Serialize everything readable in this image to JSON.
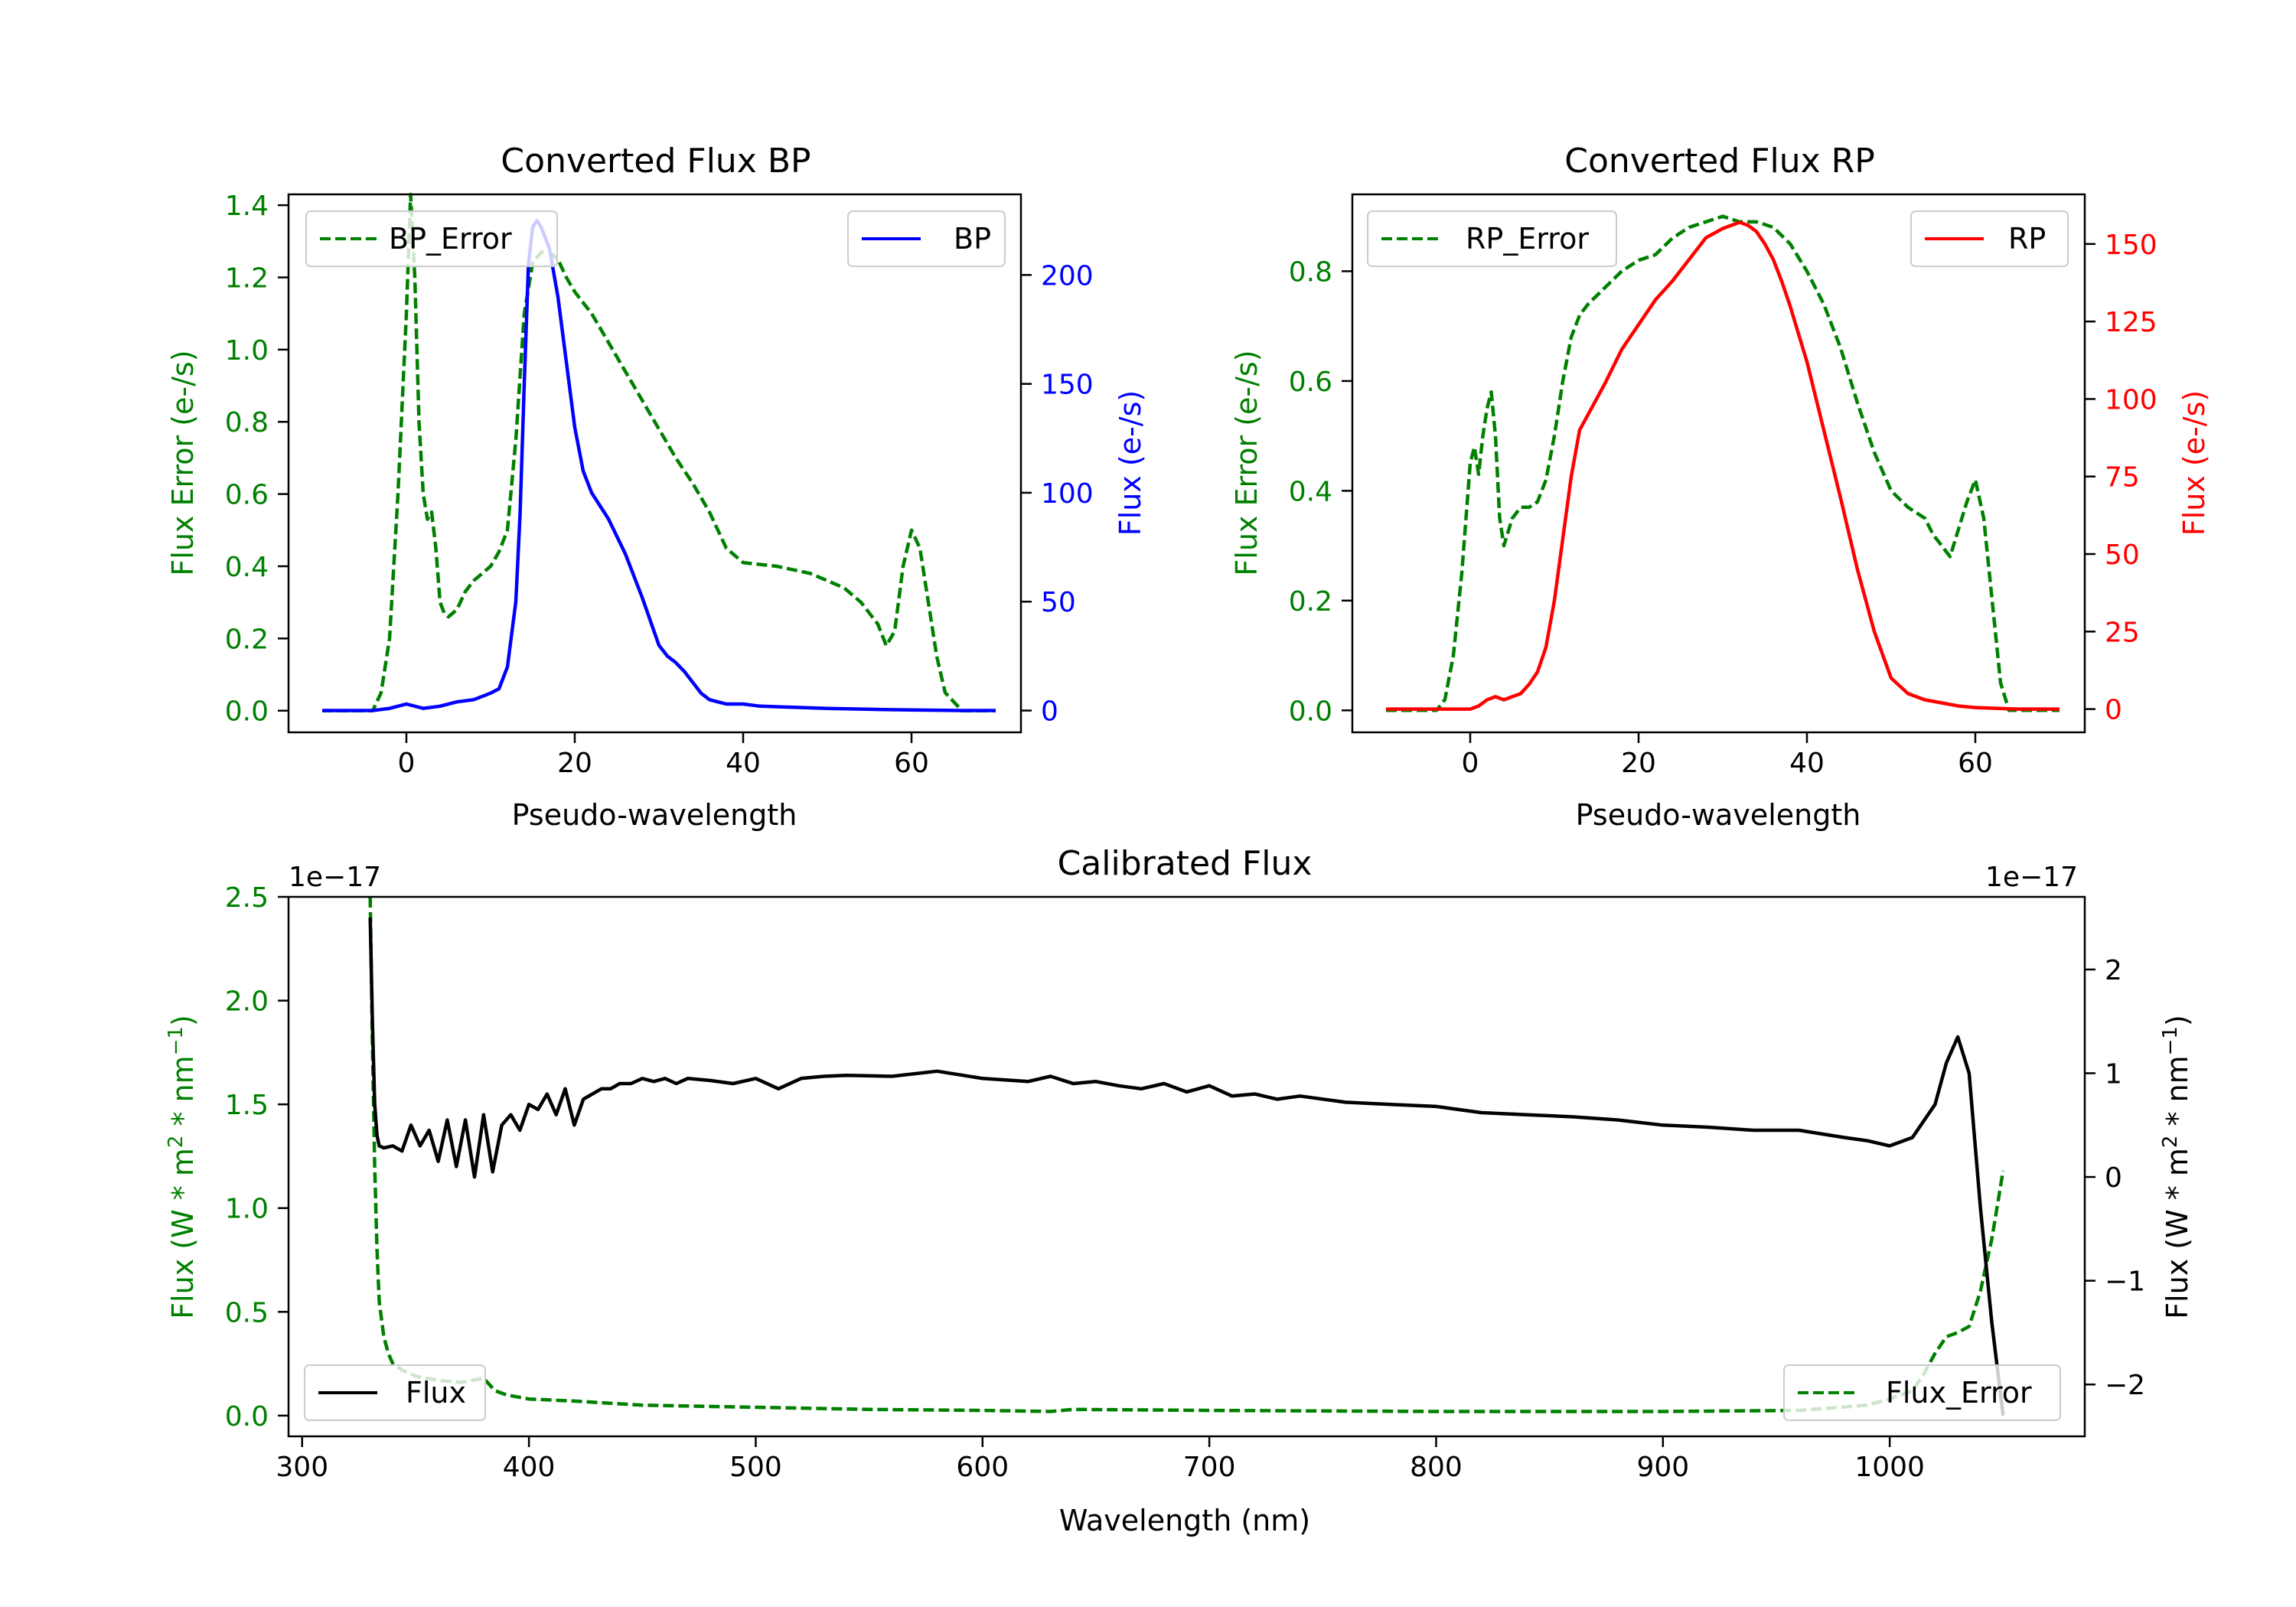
{
  "colors": {
    "green": "#008000",
    "blue": "#0000ff",
    "red": "#ff0000",
    "black": "#000000"
  },
  "chart_data": [
    {
      "id": "bp",
      "type": "line",
      "title": "Converted Flux BP",
      "xlabel": "Pseudo-wavelength",
      "ylabel_left": "Flux Error (e-/s)",
      "ylabel_right": "Flux (e-/s)",
      "xlim": [
        -14,
        73
      ],
      "ylim_left": [
        -0.06,
        1.43
      ],
      "ylim_right": [
        -10,
        237
      ],
      "xticks": [
        0,
        20,
        40,
        60
      ],
      "yticks_left": [
        "0.0",
        "0.2",
        "0.4",
        "0.6",
        "0.8",
        "1.0",
        "1.2",
        "1.4"
      ],
      "yticks_right": [
        "0",
        "50",
        "100",
        "150",
        "200"
      ],
      "legend_left": "BP_Error",
      "legend_right": "BP",
      "series": [
        {
          "name": "BP_Error",
          "axis": "left",
          "color": "green",
          "dash": true,
          "x": [
            -10,
            -4,
            -3,
            -2,
            -1,
            0,
            0.5,
            1,
            1.5,
            2,
            2.5,
            3,
            3.5,
            4,
            4.5,
            5,
            6,
            7,
            8,
            9,
            10,
            11,
            12,
            13,
            14,
            15,
            16,
            17,
            18,
            19,
            20,
            22,
            24,
            26,
            28,
            30,
            32,
            34,
            36,
            38,
            40,
            44,
            48,
            52,
            54,
            56,
            57,
            58,
            59,
            60,
            61,
            62,
            63,
            64,
            66,
            70
          ],
          "y": [
            0,
            0,
            0.05,
            0.2,
            0.6,
            1.1,
            1.43,
            1.2,
            0.8,
            0.6,
            0.53,
            0.55,
            0.45,
            0.3,
            0.27,
            0.26,
            0.28,
            0.33,
            0.36,
            0.38,
            0.4,
            0.44,
            0.5,
            0.75,
            1.1,
            1.24,
            1.27,
            1.27,
            1.25,
            1.2,
            1.16,
            1.1,
            1.02,
            0.94,
            0.86,
            0.78,
            0.7,
            0.63,
            0.55,
            0.45,
            0.41,
            0.4,
            0.38,
            0.34,
            0.3,
            0.24,
            0.18,
            0.22,
            0.4,
            0.5,
            0.45,
            0.3,
            0.15,
            0.05,
            0,
            0
          ]
        },
        {
          "name": "BP",
          "axis": "right",
          "color": "blue",
          "dash": false,
          "x": [
            -10,
            -4,
            -2,
            0,
            2,
            4,
            6,
            8,
            10,
            11,
            12,
            13,
            13.5,
            14,
            14.5,
            15,
            15.5,
            16,
            17,
            18,
            19,
            20,
            21,
            22,
            24,
            26,
            28,
            30,
            31,
            32,
            33,
            34,
            35,
            36,
            37,
            38,
            40,
            42,
            46,
            50,
            56,
            60,
            66,
            70
          ],
          "y": [
            0,
            0,
            1,
            3,
            1,
            2,
            4,
            5,
            8,
            10,
            20,
            50,
            90,
            150,
            205,
            222,
            225,
            222,
            212,
            190,
            160,
            130,
            110,
            100,
            88,
            72,
            52,
            30,
            25,
            22,
            18,
            13,
            8,
            5,
            4,
            3,
            3,
            2,
            1.5,
            1,
            0.5,
            0.3,
            0,
            0
          ]
        }
      ]
    },
    {
      "id": "rp",
      "type": "line",
      "title": "Converted Flux RP",
      "xlabel": "Pseudo-wavelength",
      "ylabel_left": "Flux Error (e-/s)",
      "ylabel_right": "Flux (e-/s)",
      "xlim": [
        -14,
        73
      ],
      "ylim_left": [
        -0.04,
        0.94
      ],
      "ylim_right": [
        -7.5,
        166
      ],
      "xticks": [
        0,
        20,
        40,
        60
      ],
      "yticks_left": [
        "0.0",
        "0.2",
        "0.4",
        "0.6",
        "0.8"
      ],
      "yticks_right": [
        "0",
        "25",
        "50",
        "75",
        "100",
        "125",
        "150"
      ],
      "legend_left": "RP_Error",
      "legend_right": "RP",
      "series": [
        {
          "name": "RP_Error",
          "axis": "left",
          "color": "green",
          "dash": true,
          "x": [
            -10,
            -4,
            -3,
            -2,
            -1,
            0,
            0.5,
            1,
            1.5,
            2,
            2.5,
            3,
            3.5,
            4,
            5,
            6,
            7,
            8,
            9,
            10,
            11,
            12,
            13,
            14,
            16,
            18,
            20,
            22,
            24,
            26,
            28,
            30,
            32,
            34,
            36,
            38,
            40,
            42,
            44,
            46,
            48,
            50,
            52,
            54,
            55,
            56,
            57,
            58,
            59,
            60,
            61,
            62,
            63,
            64,
            66,
            70
          ],
          "y": [
            0,
            0,
            0.02,
            0.1,
            0.25,
            0.45,
            0.48,
            0.43,
            0.5,
            0.55,
            0.58,
            0.5,
            0.35,
            0.3,
            0.35,
            0.37,
            0.37,
            0.38,
            0.42,
            0.5,
            0.6,
            0.68,
            0.72,
            0.74,
            0.77,
            0.8,
            0.82,
            0.83,
            0.86,
            0.88,
            0.89,
            0.9,
            0.89,
            0.89,
            0.88,
            0.85,
            0.8,
            0.74,
            0.66,
            0.56,
            0.47,
            0.4,
            0.37,
            0.35,
            0.32,
            0.3,
            0.28,
            0.33,
            0.38,
            0.42,
            0.35,
            0.2,
            0.05,
            0,
            0,
            0
          ]
        },
        {
          "name": "RP",
          "axis": "right",
          "color": "red",
          "dash": false,
          "x": [
            -10,
            -4,
            -2,
            0,
            1,
            2,
            3,
            4,
            5,
            6,
            7,
            8,
            9,
            10,
            11,
            12,
            13,
            14,
            16,
            18,
            20,
            22,
            24,
            26,
            28,
            30,
            32,
            33,
            34,
            35,
            36,
            37,
            38,
            40,
            42,
            44,
            46,
            48,
            50,
            52,
            54,
            56,
            58,
            60,
            65,
            70
          ],
          "y": [
            0,
            0,
            0,
            0,
            1,
            3,
            4,
            3,
            4,
            5,
            8,
            12,
            20,
            35,
            55,
            75,
            90,
            95,
            105,
            116,
            124,
            132,
            138,
            145,
            152,
            155,
            157,
            156,
            154,
            150,
            145,
            138,
            130,
            112,
            90,
            68,
            45,
            25,
            10,
            5,
            3,
            2,
            1,
            0.5,
            0,
            0
          ]
        }
      ]
    },
    {
      "id": "cal",
      "type": "line",
      "title": "Calibrated Flux",
      "xlabel": "Wavelength (nm)",
      "ylabel_left": "Flux (W * m",
      "ylabel_right": "Flux (W * m",
      "ylabel_mid": " * nm",
      "ylabel_end": ")",
      "ylabel_sup1": "2",
      "ylabel_sup2": "−1",
      "offset_left": "1e−17",
      "offset_right": "1e−17",
      "xlim": [
        294,
        1086
      ],
      "ylim_left": [
        -0.1,
        2.5
      ],
      "ylim_right": [
        -2.5,
        2.7
      ],
      "xticks": [
        300,
        400,
        500,
        600,
        700,
        800,
        900,
        1000
      ],
      "yticks_left": [
        "0.0",
        "0.5",
        "1.0",
        "1.5",
        "2.0",
        "2.5"
      ],
      "yticks_right": [
        "−2",
        "−1",
        "0",
        "1",
        "2"
      ],
      "legend_left": "Flux",
      "legend_right": "Flux_Error",
      "series": [
        {
          "name": "Flux_Error",
          "axis": "left",
          "color": "green",
          "dash": true,
          "x": [
            330,
            331,
            332,
            333,
            334,
            336,
            338,
            340,
            344,
            350,
            360,
            370,
            380,
            385,
            390,
            400,
            420,
            450,
            500,
            550,
            600,
            630,
            640,
            700,
            800,
            900,
            960,
            990,
            1000,
            1010,
            1015,
            1020,
            1025,
            1030,
            1035,
            1040,
            1045,
            1050
          ],
          "y": [
            2.5,
            1.8,
            1.2,
            0.8,
            0.55,
            0.38,
            0.3,
            0.25,
            0.22,
            0.19,
            0.17,
            0.16,
            0.18,
            0.12,
            0.1,
            0.08,
            0.07,
            0.05,
            0.04,
            0.03,
            0.025,
            0.02,
            0.03,
            0.025,
            0.02,
            0.02,
            0.025,
            0.05,
            0.08,
            0.12,
            0.2,
            0.3,
            0.38,
            0.4,
            0.43,
            0.6,
            0.85,
            1.18
          ]
        },
        {
          "name": "Flux",
          "axis": "right",
          "color": "black",
          "dash": false,
          "x": [
            330,
            331,
            332,
            333,
            334,
            336,
            340,
            344,
            348,
            352,
            356,
            360,
            364,
            368,
            372,
            376,
            380,
            384,
            388,
            392,
            396,
            400,
            404,
            408,
            412,
            416,
            420,
            424,
            428,
            432,
            436,
            440,
            445,
            450,
            455,
            460,
            465,
            470,
            480,
            490,
            500,
            510,
            520,
            530,
            540,
            560,
            580,
            600,
            620,
            630,
            640,
            650,
            660,
            670,
            680,
            690,
            700,
            710,
            720,
            730,
            740,
            760,
            780,
            800,
            820,
            840,
            860,
            880,
            900,
            920,
            940,
            960,
            980,
            990,
            1000,
            1010,
            1020,
            1025,
            1030,
            1035,
            1040,
            1045,
            1050
          ],
          "y": [
            2.5,
            1.5,
            0.7,
            0.4,
            0.3,
            0.28,
            0.3,
            0.25,
            0.5,
            0.3,
            0.45,
            0.15,
            0.55,
            0.1,
            0.55,
            0,
            0.6,
            0.05,
            0.5,
            0.6,
            0.45,
            0.7,
            0.65,
            0.8,
            0.6,
            0.85,
            0.5,
            0.75,
            0.8,
            0.85,
            0.85,
            0.9,
            0.9,
            0.95,
            0.92,
            0.95,
            0.9,
            0.95,
            0.93,
            0.9,
            0.95,
            0.85,
            0.95,
            0.97,
            0.98,
            0.97,
            1.02,
            0.95,
            0.92,
            0.97,
            0.9,
            0.92,
            0.88,
            0.85,
            0.9,
            0.82,
            0.88,
            0.78,
            0.8,
            0.75,
            0.78,
            0.72,
            0.7,
            0.68,
            0.62,
            0.6,
            0.58,
            0.55,
            0.5,
            0.48,
            0.45,
            0.45,
            0.38,
            0.35,
            0.3,
            0.38,
            0.7,
            1.1,
            1.35,
            1.0,
            -0.3,
            -1.4,
            -2.3
          ]
        }
      ]
    }
  ]
}
